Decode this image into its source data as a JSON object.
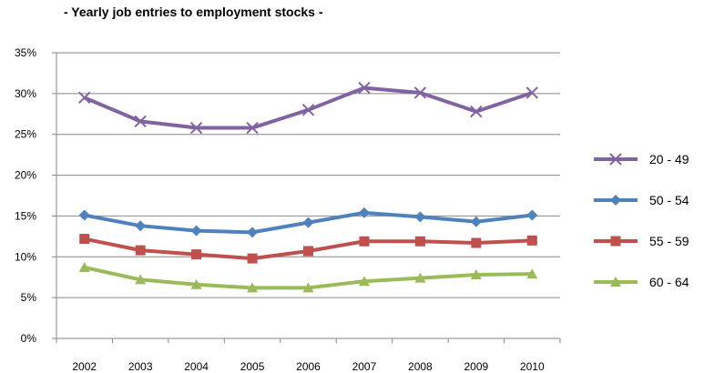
{
  "chart_data": {
    "type": "line",
    "title": "- Yearly job entries to employment stocks -",
    "xlabel": "",
    "ylabel": "",
    "x": [
      "2002",
      "2003",
      "2004",
      "2005",
      "2006",
      "2007",
      "2008",
      "2009",
      "2010"
    ],
    "ylim": [
      0,
      35
    ],
    "yticks": [
      "0%",
      "5%",
      "10%",
      "15%",
      "20%",
      "25%",
      "30%",
      "35%"
    ],
    "grid": true,
    "legend_position": "right",
    "series": [
      {
        "name": "20 - 49",
        "color": "#8064a2",
        "marker": "x",
        "values": [
          29.5,
          26.6,
          25.8,
          25.8,
          28.0,
          30.7,
          30.1,
          27.8,
          30.1
        ]
      },
      {
        "name": "50 - 54",
        "color": "#4f81bd",
        "marker": "diamond",
        "values": [
          15.1,
          13.8,
          13.2,
          13.0,
          14.2,
          15.4,
          14.9,
          14.3,
          15.1
        ]
      },
      {
        "name": "55 - 59",
        "color": "#c0504d",
        "marker": "square",
        "values": [
          12.2,
          10.8,
          10.3,
          9.8,
          10.7,
          11.9,
          11.9,
          11.7,
          12.0
        ]
      },
      {
        "name": "60 - 64",
        "color": "#9bbb59",
        "marker": "triangle",
        "values": [
          8.7,
          7.2,
          6.6,
          6.2,
          6.2,
          7.0,
          7.4,
          7.8,
          7.9
        ]
      }
    ]
  }
}
